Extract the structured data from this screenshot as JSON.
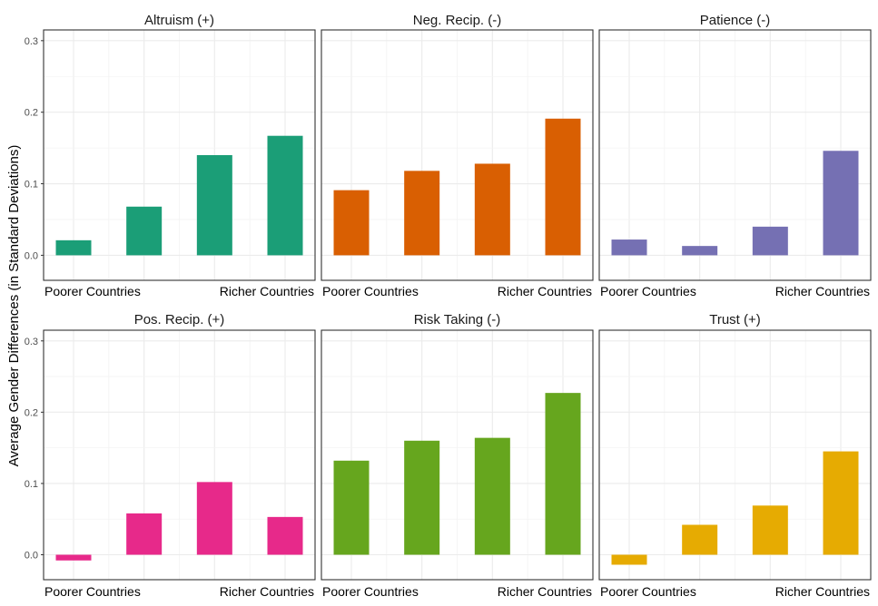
{
  "chart_data": {
    "type": "bar",
    "ylabel": "Average Gender Differences (in Standard Deviations)",
    "xlabel": "",
    "ylim": [
      -0.035,
      0.315
    ],
    "yticks": [
      "0.0",
      "0.1",
      "0.2",
      "0.3"
    ],
    "x_edge_labels": {
      "left": "Poorer Countries",
      "right": "Richer Countries"
    },
    "grid": true,
    "panels": [
      {
        "title": "Altruism (+)",
        "color": "#1b9e77",
        "values": [
          0.021,
          0.068,
          0.14,
          0.167
        ]
      },
      {
        "title": "Neg. Recip. (-)",
        "color": "#d95f02",
        "values": [
          0.091,
          0.118,
          0.128,
          0.191
        ]
      },
      {
        "title": "Patience (-)",
        "color": "#7570b3",
        "values": [
          0.022,
          0.013,
          0.04,
          0.146
        ]
      },
      {
        "title": "Pos. Recip. (+)",
        "color": "#e7298a",
        "values": [
          -0.008,
          0.058,
          0.102,
          0.053
        ]
      },
      {
        "title": "Risk Taking (-)",
        "color": "#66a61e",
        "values": [
          0.132,
          0.16,
          0.164,
          0.227
        ]
      },
      {
        "title": "Trust (+)",
        "color": "#e6ab02",
        "values": [
          -0.014,
          0.042,
          0.069,
          0.145
        ]
      }
    ]
  }
}
